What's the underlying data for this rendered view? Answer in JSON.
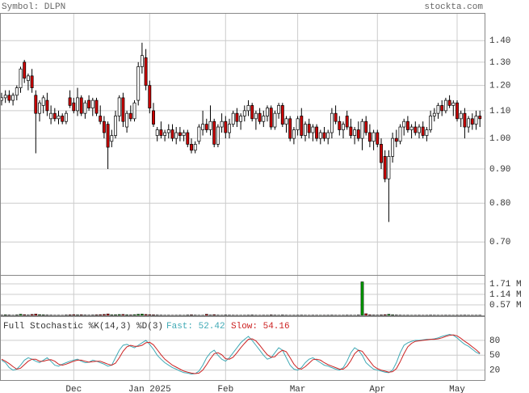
{
  "chart_data": [
    {
      "type": "candlestick",
      "title": "Symbol: DLPN",
      "source": "stockta.com",
      "categories": [
        null,
        null,
        null,
        null,
        null,
        null,
        null,
        null,
        null,
        null,
        null,
        null,
        null,
        null,
        null,
        null,
        null,
        null,
        null,
        "Dec",
        null,
        null,
        null,
        null,
        null,
        null,
        null,
        null,
        null,
        null,
        null,
        null,
        null,
        null,
        null,
        null,
        null,
        null,
        null,
        "Jan 2025",
        null,
        null,
        null,
        null,
        null,
        null,
        null,
        null,
        null,
        null,
        null,
        null,
        null,
        null,
        null,
        null,
        null,
        null,
        null,
        "Feb",
        null,
        null,
        null,
        null,
        null,
        null,
        null,
        null,
        null,
        null,
        null,
        null,
        null,
        null,
        null,
        null,
        null,
        null,
        "Mar",
        null,
        null,
        null,
        null,
        null,
        null,
        null,
        null,
        null,
        null,
        null,
        null,
        null,
        null,
        null,
        null,
        null,
        null,
        null,
        null,
        "Apr",
        null,
        null,
        null,
        null,
        null,
        null,
        null,
        null,
        null,
        null,
        null,
        null,
        null,
        null,
        null,
        null,
        null,
        null,
        null,
        null,
        "May",
        null,
        null,
        null,
        null,
        null,
        null
      ],
      "open": [
        1.14,
        1.15,
        1.16,
        1.14,
        1.16,
        1.19,
        1.3,
        1.22,
        1.24,
        1.16,
        1.09,
        1.12,
        1.14,
        1.07,
        1.09,
        1.07,
        1.08,
        1.06,
        1.15,
        1.13,
        1.1,
        1.15,
        1.09,
        1.14,
        1.11,
        1.14,
        1.08,
        1.06,
        1.05,
        0.99,
        1.01,
        1.08,
        1.15,
        1.04,
        1.09,
        1.07,
        1.14,
        1.28,
        1.32,
        1.2,
        1.1,
        1.01,
        1.03,
        1.01,
        1.02,
        1.03,
        1.0,
        1.02,
        1.01,
        1.02,
        0.98,
        0.96,
        0.99,
        1.03,
        1.05,
        1.03,
        1.06,
        0.98,
        1.04,
        1.06,
        1.02,
        1.05,
        1.09,
        1.06,
        1.08,
        1.1,
        1.12,
        1.07,
        1.09,
        1.06,
        1.08,
        1.11,
        1.04,
        1.09,
        1.12,
        1.05,
        1.07,
        1.0,
        1.03,
        1.08,
        1.01,
        1.05,
        1.02,
        1.04,
        1.0,
        1.02,
        1.0,
        1.02,
        1.09,
        1.06,
        1.03,
        1.08,
        1.04,
        1.01,
        1.03,
        1.0,
        1.06,
        1.02,
        0.99,
        1.02,
        0.98,
        0.94,
        0.87,
        0.94,
        1.0,
        0.99,
        1.04,
        1.06,
        1.03,
        1.04,
        1.02,
        1.04,
        1.01,
        1.03,
        1.08,
        1.09,
        1.12,
        1.1,
        1.14,
        1.12,
        1.13,
        1.07,
        1.09,
        1.04,
        1.07,
        1.05,
        1.08
      ],
      "high": [
        1.17,
        1.18,
        1.18,
        1.17,
        1.2,
        1.28,
        1.31,
        1.25,
        1.27,
        1.18,
        1.14,
        1.16,
        1.17,
        1.12,
        1.11,
        1.1,
        1.09,
        1.1,
        1.18,
        1.15,
        1.19,
        1.16,
        1.14,
        1.16,
        1.15,
        1.15,
        1.12,
        1.08,
        1.06,
        1.03,
        1.1,
        1.16,
        1.17,
        1.1,
        1.12,
        1.14,
        1.3,
        1.39,
        1.36,
        1.22,
        1.13,
        1.04,
        1.06,
        1.03,
        1.05,
        1.05,
        1.04,
        1.04,
        1.03,
        1.03,
        1.0,
        0.99,
        1.05,
        1.1,
        1.07,
        1.12,
        1.07,
        1.05,
        1.09,
        1.08,
        1.07,
        1.1,
        1.11,
        1.09,
        1.12,
        1.14,
        1.13,
        1.1,
        1.11,
        1.1,
        1.12,
        1.12,
        1.1,
        1.13,
        1.13,
        1.08,
        1.08,
        1.04,
        1.08,
        1.11,
        1.06,
        1.07,
        1.05,
        1.05,
        1.03,
        1.04,
        1.03,
        1.11,
        1.12,
        1.08,
        1.06,
        1.1,
        1.07,
        1.04,
        1.06,
        1.07,
        1.08,
        1.05,
        1.03,
        1.03,
        1.0,
        0.96,
        0.96,
        1.02,
        1.03,
        1.05,
        1.07,
        1.08,
        1.05,
        1.06,
        1.05,
        1.06,
        1.04,
        1.1,
        1.11,
        1.13,
        1.14,
        1.15,
        1.16,
        1.14,
        1.14,
        1.1,
        1.11,
        1.08,
        1.09,
        1.1,
        1.1
      ],
      "low": [
        1.12,
        1.13,
        1.13,
        1.12,
        1.14,
        1.17,
        1.21,
        1.18,
        1.17,
        0.95,
        1.06,
        1.09,
        1.08,
        1.05,
        1.06,
        1.05,
        1.05,
        1.05,
        1.11,
        1.09,
        1.08,
        1.08,
        1.07,
        1.1,
        1.08,
        1.08,
        1.05,
        1.0,
        0.9,
        0.97,
        1.0,
        1.06,
        1.04,
        1.02,
        1.06,
        1.06,
        1.12,
        1.25,
        1.18,
        1.09,
        1.04,
        0.99,
        1.0,
        0.99,
        1.0,
        0.99,
        0.98,
        0.99,
        0.99,
        0.97,
        0.95,
        0.95,
        0.98,
        1.01,
        1.02,
        1.01,
        0.97,
        0.97,
        1.02,
        1.0,
        1.0,
        1.04,
        1.04,
        1.03,
        1.06,
        1.08,
        1.06,
        1.03,
        1.05,
        1.04,
        1.06,
        1.03,
        1.03,
        1.07,
        1.04,
        1.02,
        0.99,
        0.98,
        1.01,
        1.0,
        0.99,
        1.0,
        0.99,
        0.99,
        0.98,
        0.99,
        0.98,
        1.0,
        1.05,
        1.01,
        1.0,
        1.03,
        1.0,
        0.98,
        0.99,
        0.96,
        1.01,
        0.97,
        0.96,
        0.97,
        0.9,
        0.86,
        0.75,
        0.92,
        0.97,
        0.98,
        1.01,
        1.02,
        1.0,
        1.01,
        1.0,
        1.0,
        0.99,
        1.02,
        1.06,
        1.07,
        1.08,
        1.09,
        1.11,
        1.08,
        1.06,
        1.04,
        1.0,
        1.02,
        1.03,
        1.03,
        1.04
      ],
      "close": [
        1.15,
        1.16,
        1.14,
        1.16,
        1.19,
        1.27,
        1.23,
        1.24,
        1.19,
        1.09,
        1.13,
        1.15,
        1.1,
        1.09,
        1.07,
        1.08,
        1.06,
        1.09,
        1.12,
        1.1,
        1.15,
        1.09,
        1.13,
        1.11,
        1.14,
        1.09,
        1.06,
        1.02,
        0.97,
        1.01,
        1.08,
        1.15,
        1.06,
        1.09,
        1.07,
        1.13,
        1.28,
        1.33,
        1.2,
        1.11,
        1.05,
        1.03,
        1.01,
        1.02,
        1.03,
        1.0,
        1.02,
        1.01,
        1.02,
        0.98,
        0.96,
        0.98,
        1.04,
        1.05,
        1.03,
        1.06,
        0.98,
        1.04,
        1.06,
        1.02,
        1.05,
        1.09,
        1.06,
        1.08,
        1.1,
        1.12,
        1.07,
        1.09,
        1.06,
        1.08,
        1.11,
        1.04,
        1.09,
        1.12,
        1.05,
        1.07,
        1.0,
        1.03,
        1.07,
        1.01,
        1.05,
        1.02,
        1.04,
        1.0,
        1.02,
        1.0,
        1.02,
        1.09,
        1.06,
        1.03,
        1.05,
        1.04,
        1.01,
        1.03,
        1.0,
        1.06,
        1.02,
        0.99,
        1.02,
        0.98,
        0.92,
        0.87,
        0.94,
        1.0,
        0.99,
        1.04,
        1.06,
        1.03,
        1.04,
        1.02,
        1.04,
        1.01,
        1.03,
        1.08,
        1.09,
        1.12,
        1.1,
        1.14,
        1.12,
        1.13,
        1.07,
        1.09,
        1.04,
        1.07,
        1.05,
        1.08,
        1.07
      ],
      "up_color": "#ffffff",
      "down_color": "#cc0000",
      "log": true,
      "ylim": [
        0.625,
        1.54
      ],
      "grid": true,
      "yticks": [
        {
          "value": 0.7,
          "label": "0.70"
        },
        {
          "value": 0.8,
          "label": "0.80"
        },
        {
          "value": 0.9,
          "label": "0.90"
        },
        {
          "value": 1.0,
          "label": "1.00"
        },
        {
          "value": 1.1,
          "label": "1.10"
        },
        {
          "value": 1.2,
          "label": "1.20"
        },
        {
          "value": 1.3,
          "label": "1.30"
        },
        {
          "value": 1.4,
          "label": "1.40"
        }
      ]
    },
    {
      "type": "bar",
      "up_color": "#009900",
      "down_color": "#cc0000",
      "values": [
        15000,
        30000,
        20000,
        10000,
        25000,
        60000,
        40000,
        20000,
        50000,
        70000,
        40000,
        30000,
        20000,
        15000,
        10000,
        12000,
        8000,
        20000,
        30000,
        40000,
        25000,
        35000,
        20000,
        15000,
        20000,
        30000,
        40000,
        50000,
        80000,
        30000,
        35000,
        45000,
        50000,
        30000,
        25000,
        40000,
        60000,
        70000,
        50000,
        40000,
        30000,
        20000,
        15000,
        10000,
        12000,
        8000,
        10000,
        12000,
        8000,
        20000,
        30000,
        15000,
        10000,
        8000,
        60000,
        20000,
        40000,
        15000,
        10000,
        20000,
        15000,
        12000,
        10000,
        8000,
        10000,
        15000,
        20000,
        10000,
        8000,
        12000,
        10000,
        25000,
        15000,
        10000,
        20000,
        12000,
        8000,
        10000,
        12000,
        15000,
        10000,
        8000,
        12000,
        10000,
        8000,
        10000,
        12000,
        15000,
        10000,
        8000,
        10000,
        15000,
        12000,
        8000,
        20000,
        1820000,
        90000,
        30000,
        20000,
        15000,
        25000,
        40000,
        60000,
        30000,
        20000,
        15000,
        10000,
        12000,
        8000,
        10000,
        12000,
        8000,
        10000,
        15000,
        12000,
        10000,
        8000,
        12000,
        10000,
        8000,
        10000,
        12000,
        15000,
        10000,
        8000,
        10000,
        12000
      ],
      "ylim": [
        0,
        2150000
      ],
      "yticks": [
        {
          "value": 570000,
          "label": "0.57 M"
        },
        {
          "value": 1140000,
          "label": "1.14 M"
        },
        {
          "value": 1710000,
          "label": "1.71 M"
        }
      ]
    },
    {
      "type": "line",
      "title": "Full Stochastic %K(14,3) %D(3)",
      "series": [
        {
          "name": "Fast: 52.42",
          "color": "#3fa9b5",
          "values": [
            40,
            35,
            25,
            20,
            22,
            30,
            40,
            45,
            42,
            38,
            35,
            40,
            45,
            38,
            30,
            28,
            32,
            35,
            38,
            40,
            42,
            38,
            35,
            36,
            40,
            38,
            35,
            32,
            28,
            30,
            45,
            60,
            70,
            72,
            68,
            65,
            70,
            75,
            80,
            72,
            62,
            50,
            42,
            35,
            30,
            25,
            22,
            18,
            15,
            14,
            12,
            13,
            18,
            30,
            45,
            55,
            60,
            50,
            42,
            38,
            45,
            55,
            65,
            75,
            82,
            88,
            80,
            70,
            60,
            50,
            42,
            45,
            55,
            65,
            60,
            45,
            30,
            22,
            20,
            25,
            35,
            42,
            45,
            40,
            35,
            30,
            28,
            25,
            22,
            20,
            25,
            38,
            55,
            65,
            60,
            50,
            35,
            28,
            22,
            20,
            18,
            16,
            15,
            20,
            35,
            55,
            70,
            75,
            78,
            80,
            80,
            81,
            82,
            82,
            83,
            85,
            88,
            90,
            92,
            90,
            85,
            78,
            72,
            68,
            62,
            56,
            52.42
          ]
        },
        {
          "name": "Slow: 54.16",
          "color": "#cc2222",
          "values": [
            42,
            38,
            33,
            27,
            22,
            24,
            31,
            38,
            42,
            42,
            38,
            38,
            40,
            41,
            38,
            32,
            30,
            32,
            35,
            38,
            40,
            40,
            38,
            36,
            37,
            38,
            38,
            35,
            32,
            30,
            34,
            45,
            58,
            67,
            70,
            68,
            68,
            70,
            75,
            76,
            71,
            61,
            51,
            42,
            36,
            30,
            26,
            22,
            18,
            16,
            14,
            13,
            14,
            20,
            31,
            43,
            53,
            55,
            51,
            43,
            42,
            46,
            55,
            65,
            74,
            82,
            83,
            79,
            70,
            60,
            51,
            46,
            47,
            55,
            60,
            57,
            45,
            32,
            24,
            22,
            27,
            34,
            41,
            42,
            40,
            35,
            31,
            28,
            25,
            22,
            22,
            28,
            39,
            53,
            60,
            58,
            48,
            38,
            28,
            23,
            20,
            18,
            16,
            17,
            23,
            37,
            53,
            67,
            74,
            78,
            79,
            80,
            81,
            82,
            82,
            83,
            85,
            88,
            90,
            91,
            89,
            84,
            78,
            73,
            67,
            61,
            54.16
          ]
        }
      ],
      "ylim": [
        0,
        127
      ],
      "yticks": [
        20,
        50,
        80
      ],
      "grid": true
    }
  ]
}
